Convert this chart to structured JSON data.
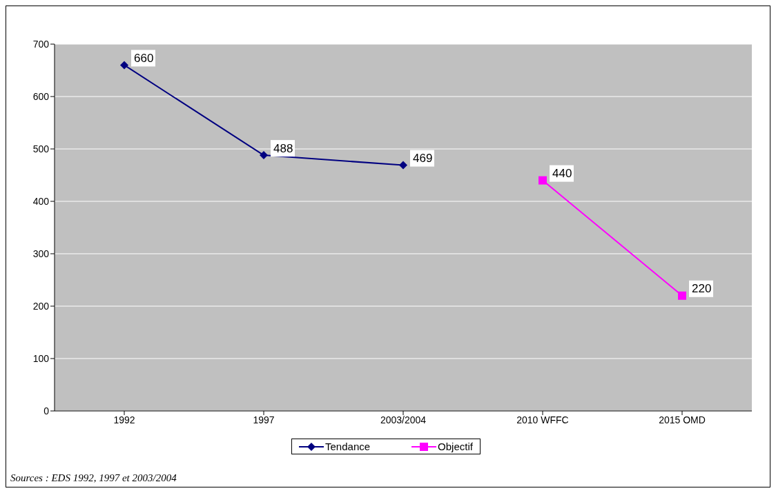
{
  "chart_data": {
    "type": "line",
    "categories": [
      "1992",
      "1997",
      "2003/2004",
      "2010 WFFC",
      "2015 OMD"
    ],
    "series": [
      {
        "name": "Tendance",
        "color": "#000080",
        "marker": "diamond",
        "values": [
          660,
          488,
          469,
          null,
          null
        ]
      },
      {
        "name": "Objectif",
        "color": "#ff00ff",
        "marker": "square",
        "values": [
          null,
          null,
          null,
          440,
          220
        ]
      }
    ],
    "ylim": [
      0,
      700
    ],
    "yticks": [
      0,
      100,
      200,
      300,
      400,
      500,
      600,
      700
    ],
    "grid": "y",
    "legend": "bottom",
    "data_labels": true,
    "annotations": [
      "Sources : EDS 1992, 1997 et 2003/2004"
    ]
  }
}
